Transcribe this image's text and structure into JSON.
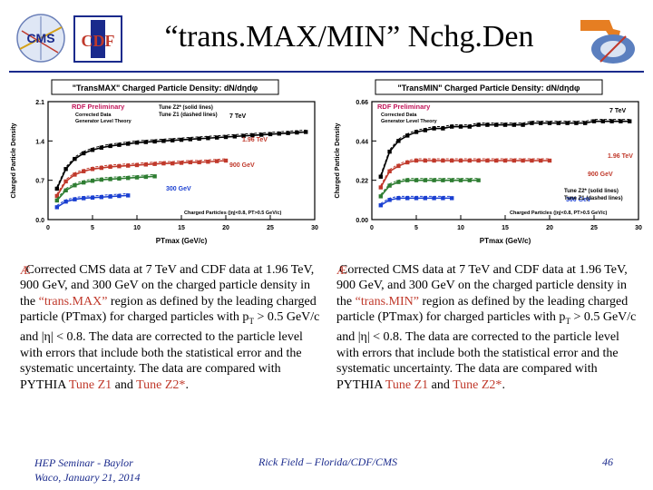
{
  "slide": {
    "title": "“trans.MAX/MIN” Nchg.Den",
    "footer": {
      "left_line1": "HEP Seminar - Baylor",
      "left_line2": "Waco, January 21, 2014",
      "center": "Rick Field – Florida/CDF/CMS",
      "page": "46"
    },
    "logos": {
      "left1": "CMS",
      "left2": "CDF"
    },
    "bullet_left": {
      "icon": "arrow-bullet-icon",
      "p1": "Corrected CMS data at 7 TeV and CDF data at 1.96 TeV, 900 GeV, and 300 GeV on the charged particle density in the ",
      "hl1": "“trans.MAX”",
      "p2": " region as defined by the leading charged particle (PTmax) for charged particles with p",
      "sub": "T",
      "p3": " > 0.5 GeV/c and |η| < 0.8. The data are corrected to the particle level with errors that include both the statistical error and the systematic uncertainty. The data are compared with PYTHIA ",
      "hl2": "Tune Z1",
      "p4": " and ",
      "hl3": "Tune Z2*",
      "p5": "."
    },
    "bullet_right": {
      "icon": "arrow-bullet-icon",
      "p1": "Corrected CMS data at 7 TeV and CDF data at 1.96 TeV, 900 GeV, and 300 GeV on the charged particle density in the ",
      "hl1": "“trans.MIN”",
      "p2": " region as defined by the leading charged particle (PTmax) for charged particles with p",
      "sub": "T",
      "p3": " > 0.5 GeV/c and |η| < 0.8. The data are corrected to the particle level with errors that include both the statistical error and the systematic uncertainty. The data are compared with PYTHIA ",
      "hl2": "Tune Z1",
      "p4": " and ",
      "hl3": "Tune Z2*",
      "p5": "."
    }
  },
  "chart_data": [
    {
      "type": "line",
      "title": "\"TransMAX\" Charged Particle Density: dN/dηdφ",
      "xlabel": "PTmax  (GeV/c)",
      "ylabel": "Charged Particle Density",
      "xlim": [
        0,
        30
      ],
      "ylim": [
        0,
        2.1
      ],
      "xticks": [
        "0",
        "5",
        "10",
        "15",
        "20",
        "25",
        "30"
      ],
      "yticks": [
        "0.0",
        "0.7",
        "1.4",
        "2.1"
      ],
      "labels": {
        "prelim": "RDF Preliminary",
        "corrected": "Corrected Data",
        "generator": "Generator Level Theory",
        "tunes1": "Tune Z2* (solid lines)",
        "tunes2": "Tune Z1 (dashed lines)",
        "cuts": "Charged Particles (|η|<0.8, PT>0.5 GeV/c)"
      },
      "series": [
        {
          "name": "7 TeV",
          "color": "#000000",
          "label_color": "#000000",
          "x": [
            1,
            2,
            3,
            4,
            5,
            6,
            7,
            8,
            9,
            10,
            11,
            12,
            13,
            14,
            15,
            16,
            17,
            18,
            19,
            20,
            21,
            22,
            23,
            24,
            25,
            26,
            27,
            28,
            29
          ],
          "values": [
            0.55,
            0.9,
            1.08,
            1.18,
            1.24,
            1.28,
            1.31,
            1.33,
            1.35,
            1.37,
            1.38,
            1.39,
            1.4,
            1.41,
            1.42,
            1.43,
            1.44,
            1.45,
            1.46,
            1.47,
            1.48,
            1.49,
            1.5,
            1.51,
            1.52,
            1.53,
            1.54,
            1.55,
            1.56
          ]
        },
        {
          "name": "1.96 TeV",
          "color": "#c0392b",
          "label_color": "#c0392b",
          "x": [
            1,
            2,
            3,
            4,
            5,
            6,
            7,
            8,
            9,
            10,
            11,
            12,
            13,
            14,
            15,
            16,
            17,
            18,
            19,
            20
          ],
          "values": [
            0.42,
            0.68,
            0.8,
            0.86,
            0.9,
            0.92,
            0.94,
            0.95,
            0.96,
            0.97,
            0.98,
            0.99,
            1.0,
            1.0,
            1.01,
            1.02,
            1.02,
            1.03,
            1.04,
            1.05
          ]
        },
        {
          "name": "900 GeV",
          "color": "#2e7d32",
          "label_color": "#c0392b",
          "x": [
            1,
            2,
            3,
            4,
            5,
            6,
            7,
            8,
            9,
            10,
            11,
            12
          ],
          "values": [
            0.34,
            0.52,
            0.61,
            0.66,
            0.69,
            0.71,
            0.72,
            0.73,
            0.74,
            0.75,
            0.76,
            0.77
          ]
        },
        {
          "name": "300 GeV",
          "color": "#1a3fd1",
          "label_color": "#1a3fd1",
          "x": [
            1,
            2,
            3,
            4,
            5,
            6,
            7,
            8,
            9
          ],
          "values": [
            0.22,
            0.32,
            0.36,
            0.38,
            0.39,
            0.4,
            0.41,
            0.42,
            0.43
          ]
        }
      ]
    },
    {
      "type": "line",
      "title": "\"TransMIN\" Charged Particle Density: dN/dηdφ",
      "xlabel": "PTmax  (GeV/c)",
      "ylabel": "Charged Particle Density",
      "xlim": [
        0,
        30
      ],
      "ylim": [
        0,
        0.66
      ],
      "xticks": [
        "0",
        "5",
        "10",
        "15",
        "20",
        "25",
        "30"
      ],
      "yticks": [
        "0.00",
        "0.22",
        "0.44",
        "0.66"
      ],
      "labels": {
        "prelim": "RDF Preliminary",
        "corrected": "Corrected Data",
        "generator": "Generator Level Theory",
        "tunes1": "Tune Z2* (solid lines)",
        "tunes2": "Tune Z1 (dashed lines)",
        "cuts": "Charged Particles (|η|<0.8, PT>0.5 GeV/c)"
      },
      "series": [
        {
          "name": "7 TeV",
          "color": "#000000",
          "label_color": "#000000",
          "x": [
            1,
            2,
            3,
            4,
            5,
            6,
            7,
            8,
            9,
            10,
            11,
            12,
            13,
            14,
            15,
            16,
            17,
            18,
            19,
            20,
            21,
            22,
            23,
            24,
            25,
            26,
            27,
            28,
            29
          ],
          "values": [
            0.24,
            0.38,
            0.44,
            0.47,
            0.49,
            0.5,
            0.51,
            0.51,
            0.52,
            0.52,
            0.52,
            0.53,
            0.53,
            0.53,
            0.53,
            0.53,
            0.53,
            0.54,
            0.54,
            0.54,
            0.54,
            0.54,
            0.54,
            0.54,
            0.55,
            0.55,
            0.55,
            0.55,
            0.55
          ]
        },
        {
          "name": "1.96 TeV",
          "color": "#c0392b",
          "label_color": "#c0392b",
          "x": [
            1,
            2,
            3,
            4,
            5,
            6,
            7,
            8,
            9,
            10,
            11,
            12,
            13,
            14,
            15,
            16,
            17,
            18,
            19,
            20
          ],
          "values": [
            0.18,
            0.27,
            0.3,
            0.32,
            0.33,
            0.33,
            0.33,
            0.33,
            0.33,
            0.33,
            0.33,
            0.33,
            0.33,
            0.33,
            0.33,
            0.33,
            0.33,
            0.33,
            0.33,
            0.33
          ]
        },
        {
          "name": "900 GeV",
          "color": "#2e7d32",
          "label_color": "#c0392b",
          "x": [
            1,
            2,
            3,
            4,
            5,
            6,
            7,
            8,
            9,
            10,
            11,
            12
          ],
          "values": [
            0.13,
            0.19,
            0.21,
            0.22,
            0.22,
            0.22,
            0.22,
            0.22,
            0.22,
            0.22,
            0.22,
            0.22
          ]
        },
        {
          "name": "300 GeV",
          "color": "#1a3fd1",
          "label_color": "#1a3fd1",
          "x": [
            1,
            2,
            3,
            4,
            5,
            6,
            7,
            8,
            9
          ],
          "values": [
            0.08,
            0.11,
            0.12,
            0.12,
            0.12,
            0.12,
            0.12,
            0.12,
            0.12
          ]
        }
      ]
    }
  ]
}
